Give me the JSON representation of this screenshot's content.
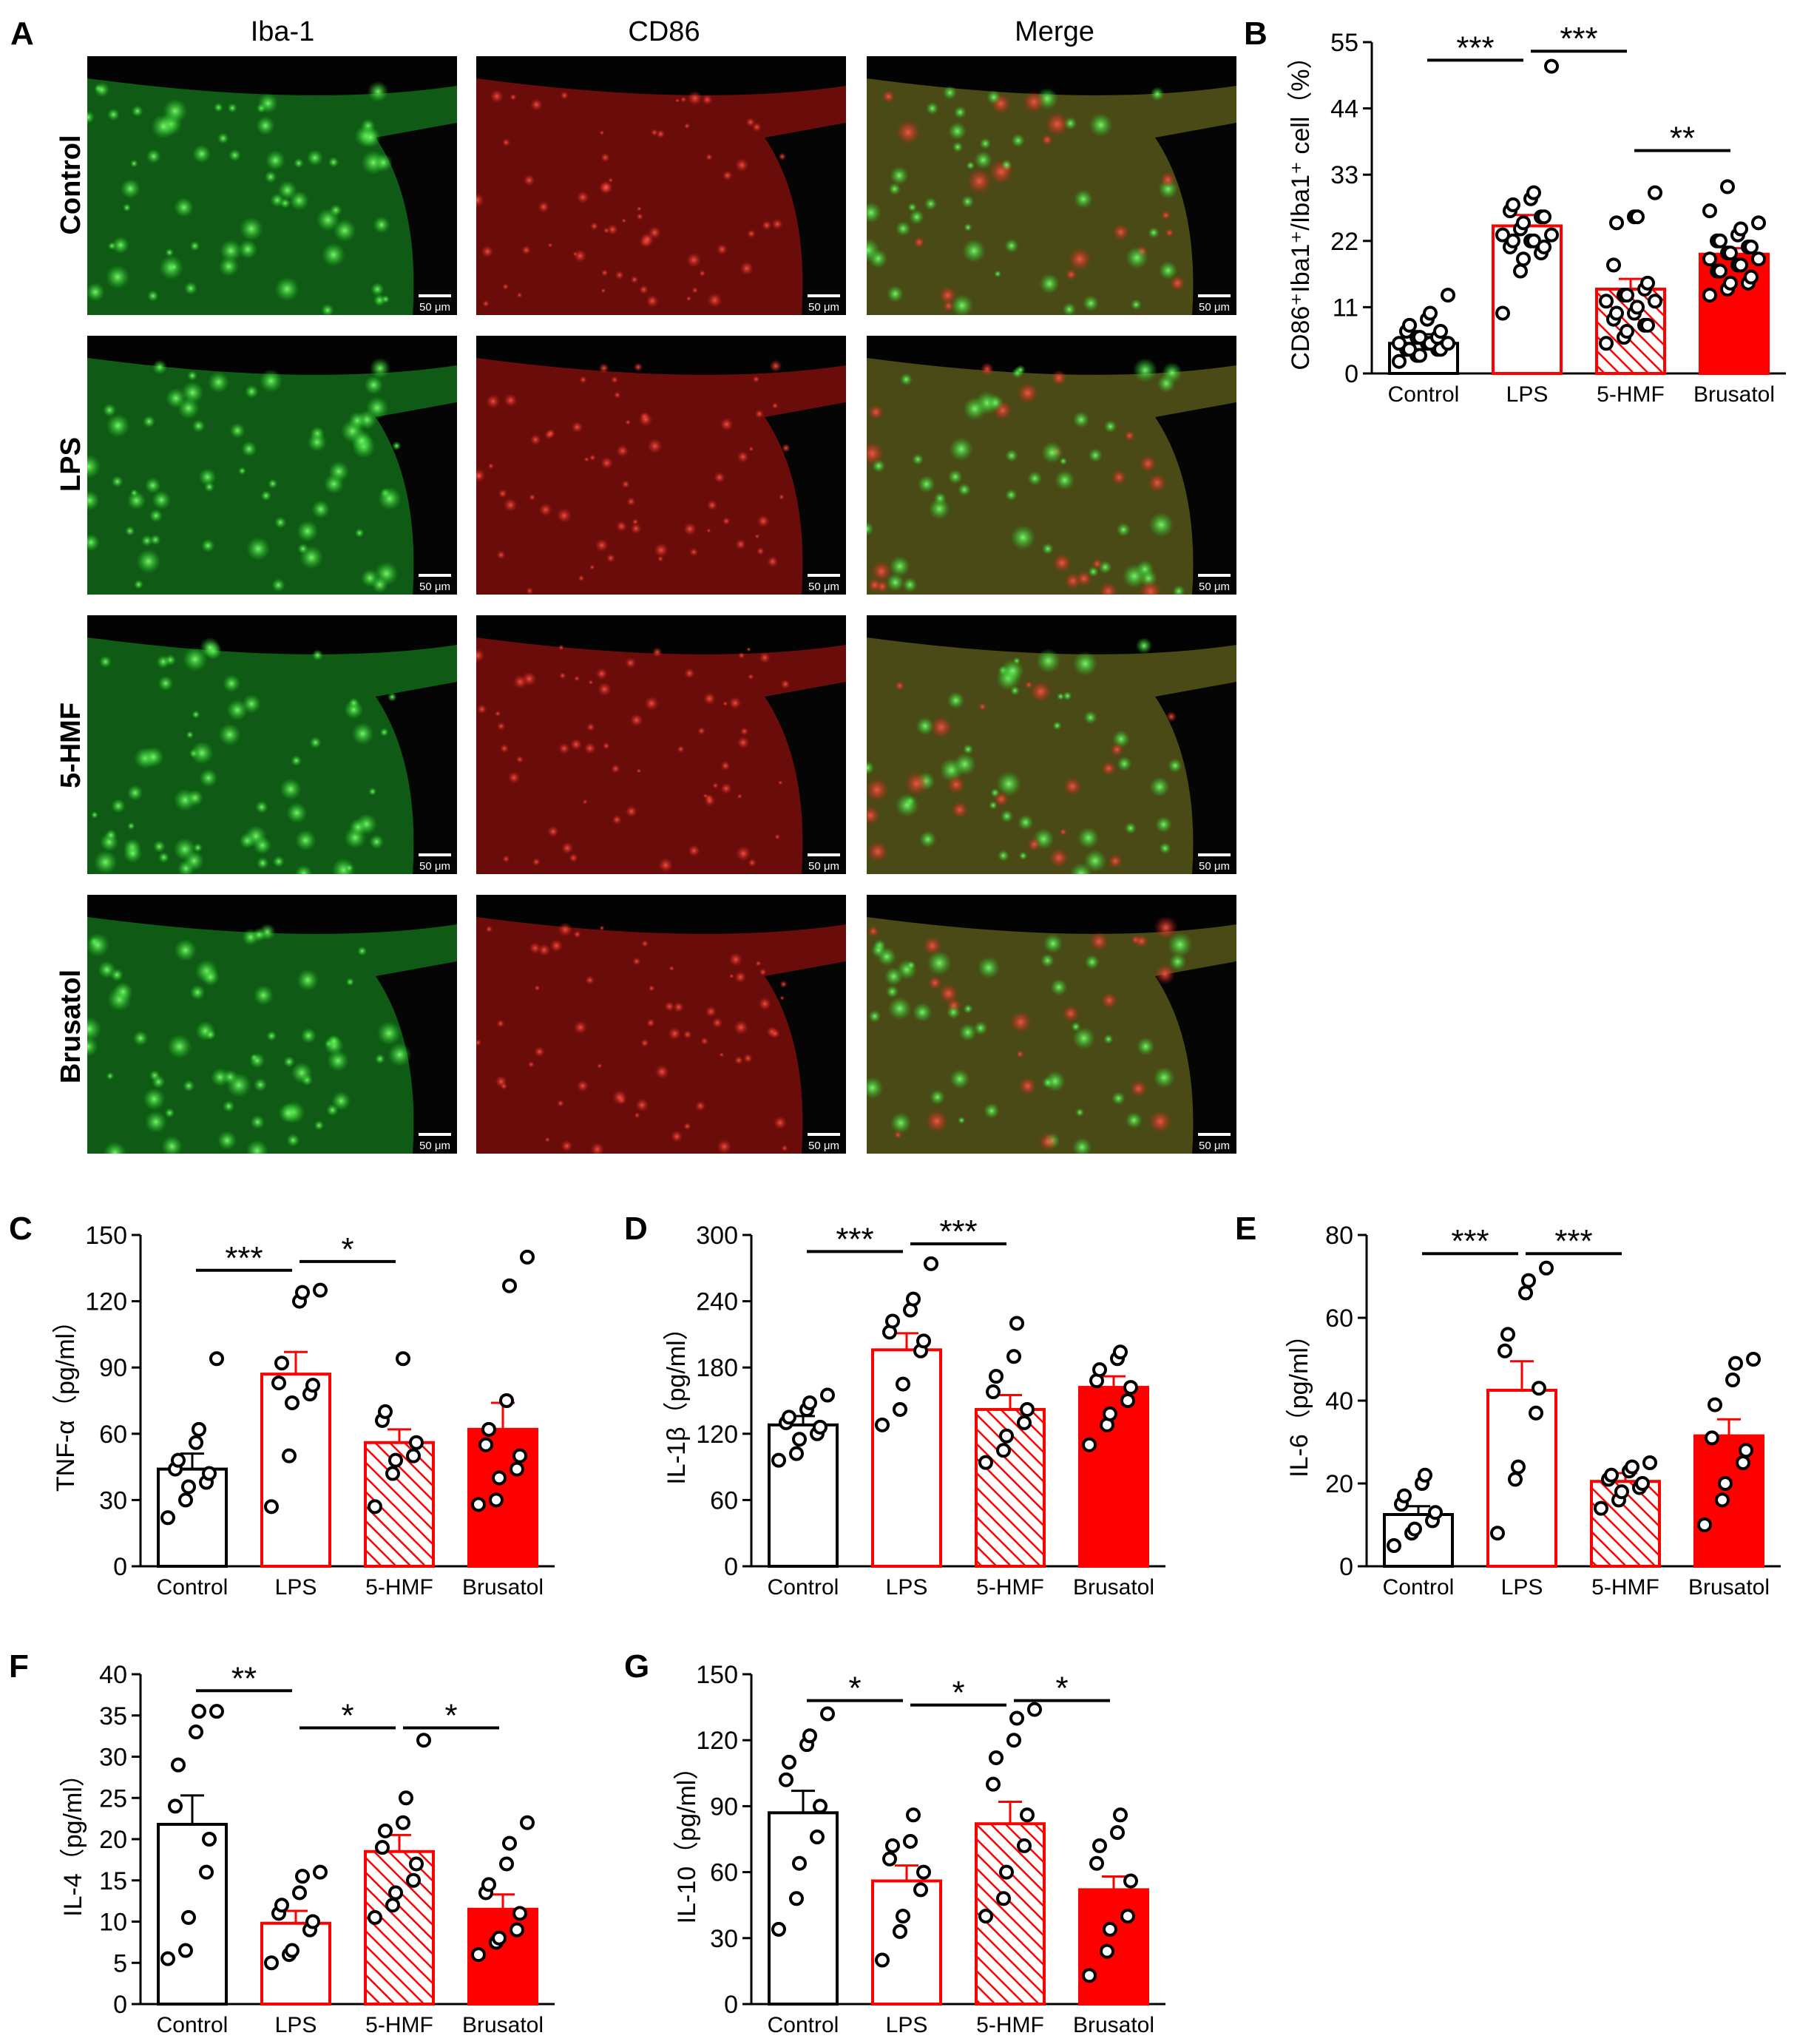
{
  "panel_a": {
    "letter": "A",
    "columns": [
      "Iba-1",
      "CD86",
      "Merge"
    ],
    "rows": [
      "Control",
      "LPS",
      "5-HMF",
      "Brusatol"
    ],
    "scale_bar": "50 μm",
    "colors": {
      "iba1": "#16c41c",
      "cd86": "#d01a14"
    }
  },
  "chart_data": [
    {
      "id": "B",
      "letter": "B",
      "type": "bar",
      "categories": [
        "Control",
        "LPS",
        "5-HMF",
        "Brusatol"
      ],
      "values": [
        5,
        24.5,
        14,
        19.8
      ],
      "errors": [
        1.5,
        1.8,
        1.7,
        1.0
      ],
      "points": [
        [
          2,
          3,
          3,
          4,
          4,
          4,
          4,
          5,
          5,
          5,
          5,
          6,
          6,
          6,
          7,
          7,
          8,
          9,
          10,
          13
        ],
        [
          10,
          17,
          19,
          20,
          21,
          21,
          22,
          22,
          22,
          23,
          23,
          24,
          25,
          26,
          26,
          27,
          28,
          29,
          30,
          51
        ],
        [
          5,
          6,
          7,
          8,
          8,
          9,
          10,
          10,
          11,
          12,
          12,
          13,
          13,
          14,
          15,
          18,
          25,
          26,
          26,
          30
        ],
        [
          13,
          14,
          15,
          15,
          16,
          17,
          17,
          18,
          18,
          19,
          19,
          20,
          20,
          21,
          21,
          22,
          22,
          23,
          24,
          25,
          27,
          31
        ]
      ],
      "ylabel": "CD86⁺Iba1⁺/Iba1⁺ cell（%）",
      "yticks": [
        0,
        11,
        22,
        33,
        44,
        55
      ],
      "ylim": [
        0,
        55
      ],
      "significance": [
        {
          "from": 0,
          "to": 1,
          "label": "***",
          "y": 52
        },
        {
          "from": 1,
          "to": 2,
          "label": "***",
          "y": 53.5
        },
        {
          "from": 2,
          "to": 3,
          "label": "**",
          "y": 37
        }
      ]
    },
    {
      "id": "C",
      "letter": "C",
      "type": "bar",
      "categories": [
        "Control",
        "LPS",
        "5-HMF",
        "Brusatol"
      ],
      "values": [
        44,
        87,
        56,
        62
      ],
      "errors": [
        7,
        10,
        6,
        12
      ],
      "points": [
        [
          22,
          30,
          36,
          38,
          42,
          44,
          48,
          56,
          62,
          94
        ],
        [
          27,
          50,
          74,
          78,
          82,
          83,
          92,
          120,
          124,
          125
        ],
        [
          27,
          42,
          48,
          50,
          56,
          66,
          70,
          94
        ],
        [
          28,
          30,
          40,
          44,
          50,
          55,
          62,
          75,
          127,
          140
        ]
      ],
      "ylabel": "TNF-α（pg/ml）",
      "yticks": [
        0,
        30,
        60,
        90,
        120,
        150
      ],
      "ylim": [
        0,
        150
      ],
      "significance": [
        {
          "from": 0,
          "to": 1,
          "label": "***",
          "y": 134
        },
        {
          "from": 1,
          "to": 2,
          "label": "*",
          "y": 138
        }
      ]
    },
    {
      "id": "D",
      "letter": "D",
      "type": "bar",
      "categories": [
        "Control",
        "LPS",
        "5-HMF",
        "Brusatol"
      ],
      "values": [
        128,
        196,
        142,
        162
      ],
      "errors": [
        8,
        15,
        13,
        10
      ],
      "points": [
        [
          96,
          102,
          115,
          120,
          126,
          130,
          135,
          142,
          148,
          155
        ],
        [
          128,
          142,
          165,
          195,
          204,
          212,
          222,
          232,
          242,
          274
        ],
        [
          94,
          105,
          118,
          130,
          142,
          158,
          172,
          190,
          220
        ],
        [
          110,
          128,
          138,
          150,
          162,
          168,
          178,
          188,
          194
        ]
      ],
      "ylabel": "IL-1β（pg/ml）",
      "yticks": [
        0,
        60,
        120,
        180,
        240,
        300
      ],
      "ylim": [
        0,
        300
      ],
      "significance": [
        {
          "from": 0,
          "to": 1,
          "label": "***",
          "y": 285
        },
        {
          "from": 1,
          "to": 2,
          "label": "***",
          "y": 292
        }
      ]
    },
    {
      "id": "E",
      "letter": "E",
      "type": "bar",
      "categories": [
        "Control",
        "LPS",
        "5-HMF",
        "Brusatol"
      ],
      "values": [
        12.5,
        42.5,
        20.5,
        31.5
      ],
      "errors": [
        2,
        7,
        2,
        4
      ],
      "points": [
        [
          5,
          8,
          9,
          11,
          13,
          15,
          17,
          20,
          22
        ],
        [
          8,
          21,
          24,
          37,
          43,
          52,
          56,
          66,
          69,
          72
        ],
        [
          14,
          16,
          18,
          19,
          20,
          21,
          22,
          23,
          24,
          25
        ],
        [
          10,
          16,
          20,
          25,
          28,
          31,
          39,
          45,
          49,
          50
        ]
      ],
      "ylabel": "IL-6（pg/ml）",
      "yticks": [
        0,
        20,
        40,
        60,
        80
      ],
      "ylim": [
        0,
        80
      ],
      "significance": [
        {
          "from": 0,
          "to": 1,
          "label": "***",
          "y": 75.5
        },
        {
          "from": 1,
          "to": 2,
          "label": "***",
          "y": 75.5
        }
      ]
    },
    {
      "id": "F",
      "letter": "F",
      "type": "bar",
      "categories": [
        "Control",
        "LPS",
        "5-HMF",
        "Brusatol"
      ],
      "values": [
        21.8,
        9.8,
        18.5,
        11.5
      ],
      "errors": [
        3.5,
        1.5,
        2,
        1.8
      ],
      "points": [
        [
          5.5,
          6.5,
          10.5,
          16,
          20,
          24,
          29,
          33,
          35.5,
          35.5
        ],
        [
          5,
          6,
          6.5,
          9,
          10,
          11,
          12,
          13.5,
          15.5,
          16
        ],
        [
          10.5,
          12,
          13.5,
          15,
          17,
          19,
          21,
          22,
          25,
          32
        ],
        [
          6,
          7.5,
          8,
          9,
          11,
          13.5,
          14.5,
          17,
          19.5,
          22
        ]
      ],
      "ylabel": "IL-4（pg/ml）",
      "yticks": [
        0,
        5,
        10,
        15,
        20,
        25,
        30,
        35,
        40
      ],
      "ylim": [
        0,
        40
      ],
      "significance": [
        {
          "from": 0,
          "to": 1,
          "label": "**",
          "y": 38
        },
        {
          "from": 1,
          "to": 2,
          "label": "*",
          "y": 33.5
        },
        {
          "from": 2,
          "to": 3,
          "label": "*",
          "y": 33.5
        }
      ]
    },
    {
      "id": "G",
      "letter": "G",
      "type": "bar",
      "categories": [
        "Control",
        "LPS",
        "5-HMF",
        "Brusatol"
      ],
      "values": [
        87,
        56,
        82,
        52
      ],
      "errors": [
        10,
        7,
        10,
        6
      ],
      "points": [
        [
          34,
          48,
          64,
          76,
          90,
          102,
          110,
          118,
          122,
          132
        ],
        [
          20,
          33,
          40,
          52,
          60,
          66,
          72,
          74,
          86
        ],
        [
          40,
          48,
          60,
          72,
          86,
          100,
          112,
          120,
          130,
          134
        ],
        [
          13,
          24,
          34,
          40,
          56,
          64,
          72,
          78,
          86
        ]
      ],
      "ylabel": "IL-10（pg/ml）",
      "yticks": [
        0,
        30,
        60,
        90,
        120,
        150
      ],
      "ylim": [
        0,
        150
      ],
      "significance": [
        {
          "from": 0,
          "to": 1,
          "label": "*",
          "y": 138
        },
        {
          "from": 1,
          "to": 2,
          "label": "*",
          "y": 136
        },
        {
          "from": 2,
          "to": 3,
          "label": "*",
          "y": 138
        }
      ]
    }
  ],
  "style": {
    "black": "#000000",
    "red": "#ff0000",
    "bar_styles": [
      "outline-black",
      "outline-red",
      "hatched-red",
      "solid-red"
    ]
  }
}
